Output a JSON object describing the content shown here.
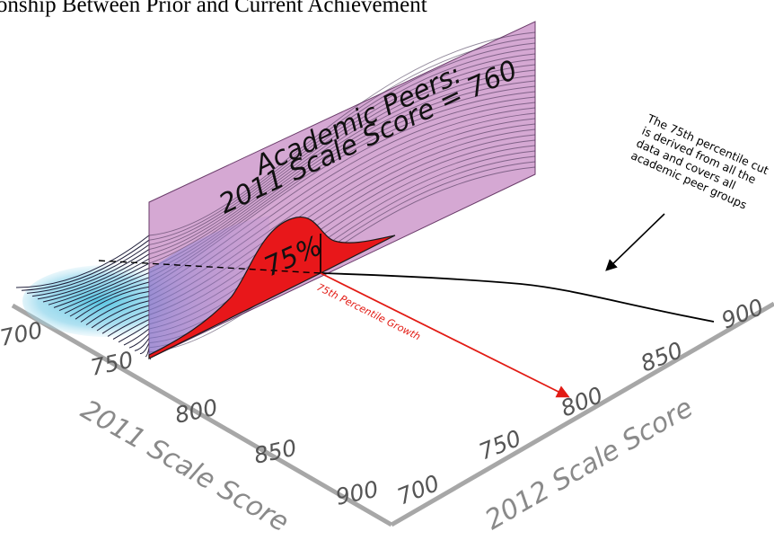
{
  "figure": {
    "title": "tionship Between Prior and Current Achievement",
    "panel_title_line1": "Academic Peers:",
    "panel_title_line2": "2011 Scale Score = 760",
    "percent_label": "75%",
    "growth_label": "75th Percentile Growth",
    "annotation_lines": [
      "The 75th percentile cut",
      "is derived from all the",
      "data and covers all",
      "academic peer groups"
    ],
    "x_axis": {
      "label": "2011 Scale Score",
      "ticks": [
        "700",
        "750",
        "800",
        "850",
        "900"
      ]
    },
    "y_axis": {
      "label": "2012 Scale Score",
      "ticks": [
        "700",
        "750",
        "800",
        "850",
        "900"
      ]
    },
    "colors": {
      "panel": "#c98fc6",
      "distribution_fill": "#e8171a",
      "growth_arrow": "#e21b14",
      "axis": "#a7a7a7",
      "density": "#48c1e0"
    }
  }
}
